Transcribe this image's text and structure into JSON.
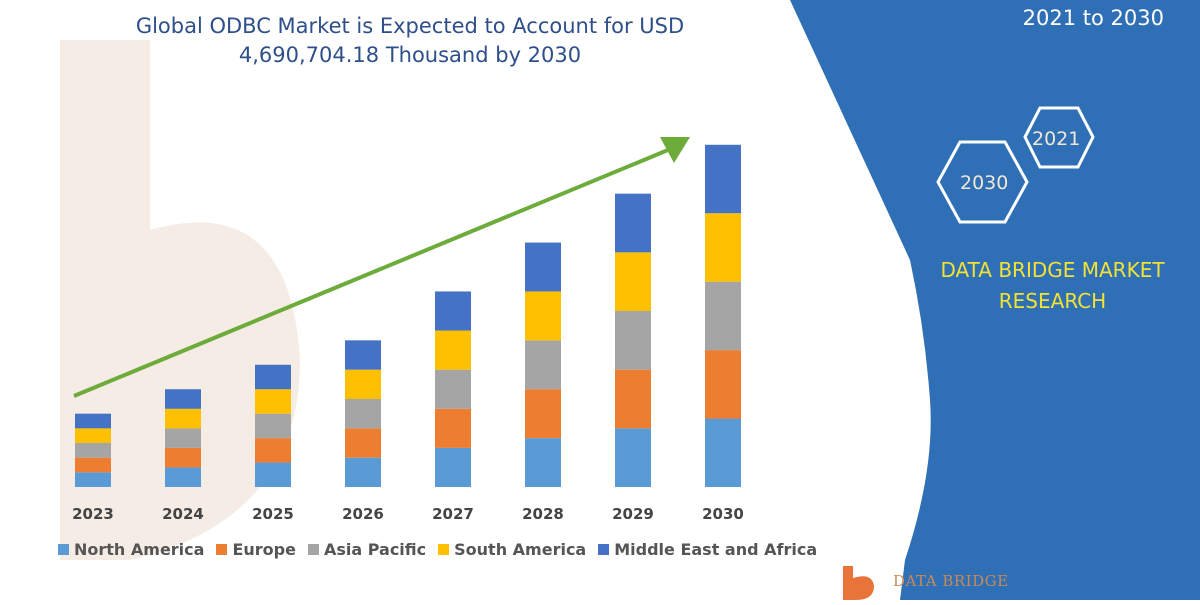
{
  "colors": {
    "panel": "#2f6fb6",
    "accent_green": "#6dab3b",
    "brand_yellow": "#f2e233",
    "hex_stroke": "#ffffff"
  },
  "header": {
    "top_right_text": "2021 to 2030"
  },
  "badges": {
    "hex_a": "2030",
    "hex_b": "2021",
    "brand_line1": "DATA BRIDGE MARKET",
    "brand_line2": "RESEARCH",
    "logo_text": "DATA BRIDGE"
  },
  "chart_data": {
    "type": "bar",
    "stacked": true,
    "title_line1": "Global ODBC Market is Expected to Account for USD",
    "title_line2": "4,690,704.18 Thousand by 2030",
    "xlabel": "",
    "ylabel": "",
    "grid": false,
    "legend_position": "bottom",
    "trend_arrow": true,
    "categories": [
      "2023",
      "2024",
      "2025",
      "2026",
      "2027",
      "2028",
      "2029",
      "2030"
    ],
    "ylim": [
      0,
      360
    ],
    "series": [
      {
        "name": "North America",
        "color": "#5b9bd5",
        "values": [
          15,
          20,
          25,
          30,
          40,
          50,
          60,
          70
        ]
      },
      {
        "name": "Europe",
        "color": "#ed7d31",
        "values": [
          15,
          20,
          25,
          30,
          40,
          50,
          60,
          70
        ]
      },
      {
        "name": "Asia Pacific",
        "color": "#a5a5a5",
        "values": [
          15,
          20,
          25,
          30,
          40,
          50,
          60,
          70
        ]
      },
      {
        "name": "South America",
        "color": "#ffc000",
        "values": [
          15,
          20,
          25,
          30,
          40,
          50,
          60,
          70
        ]
      },
      {
        "name": "Middle East and Africa",
        "color": "#4472c4",
        "values": [
          15,
          20,
          25,
          30,
          40,
          50,
          60,
          70
        ]
      }
    ]
  }
}
